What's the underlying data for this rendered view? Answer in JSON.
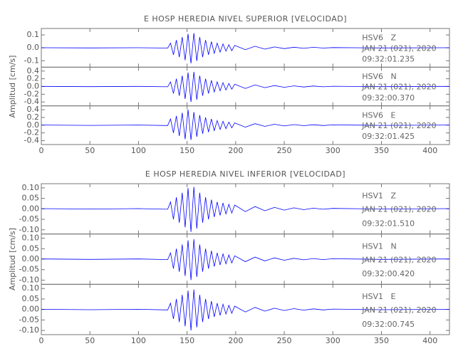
{
  "chart_data": [
    {
      "type": "line",
      "title": "E HOSP HEREDIA NIVEL SUPERIOR [VELOCIDAD]",
      "y_label": "Amplitud [cm/s]",
      "xlim": [
        0,
        420
      ],
      "xticks": [
        0,
        50,
        100,
        150,
        200,
        250,
        300,
        350,
        400
      ],
      "x": [
        0,
        50,
        100,
        130,
        133,
        136,
        139,
        142,
        145,
        148,
        151,
        154,
        157,
        160,
        163,
        166,
        169,
        172,
        175,
        178,
        181,
        184,
        187,
        190,
        193,
        196,
        199,
        210,
        220,
        230,
        240,
        250,
        260,
        270,
        280,
        290,
        300,
        350,
        420
      ],
      "series": [
        {
          "name": "HSV6   Z",
          "date": "JAN 21 (021), 2020",
          "time": "09:32:01.235",
          "color": "#0000ff",
          "ylim": [
            -0.15,
            0.15
          ],
          "yticks": [
            {
              "value": 0.1,
              "label": "0.1"
            },
            {
              "value": 0,
              "label": "0.0"
            },
            {
              "value": -0.1,
              "label": "-0.1"
            }
          ],
          "values": [
            0.001,
            -0.001,
            0.001,
            -0.002,
            0.036,
            -0.054,
            0.06,
            -0.072,
            0.084,
            -0.096,
            0.108,
            -0.12,
            0.114,
            -0.102,
            0.084,
            -0.072,
            0.06,
            -0.054,
            0.048,
            -0.042,
            0.036,
            -0.034,
            0.03,
            -0.026,
            0.024,
            -0.022,
            0.019,
            -0.014,
            0.012,
            -0.01,
            0.007,
            -0.006,
            0.005,
            -0.004,
            0.004,
            -0.002,
            0.002,
            -0.001,
            0.001
          ]
        },
        {
          "name": "HSV6   N",
          "date": "JAN 21 (021), 2020",
          "time": "09:32:00.370",
          "color": "#0000ff",
          "ylim": [
            -0.5,
            0.5
          ],
          "yticks": [
            0.4,
            0.2,
            {
              "value": 0,
              "label": "0.0"
            },
            -0.2,
            -0.4
          ],
          "values": [
            0.004,
            -0.004,
            0.004,
            -0.008,
            0.12,
            -0.18,
            0.2,
            -0.24,
            0.28,
            -0.32,
            0.36,
            -0.4,
            0.38,
            -0.34,
            0.28,
            -0.24,
            0.2,
            -0.18,
            0.16,
            -0.14,
            0.12,
            -0.11,
            0.1,
            -0.09,
            0.08,
            -0.07,
            0.06,
            -0.05,
            0.04,
            -0.03,
            0.024,
            -0.02,
            0.016,
            -0.012,
            0.012,
            -0.008,
            0.008,
            -0.004,
            0.004
          ]
        },
        {
          "name": "HSV6   E",
          "date": "JAN 21 (021), 2020",
          "time": "09:32:01.425",
          "color": "#0000ff",
          "ylim": [
            -0.5,
            0.5
          ],
          "yticks": [
            0.4,
            0.2,
            {
              "value": 0,
              "label": "0.0"
            },
            -0.2,
            -0.4
          ],
          "values": [
            0.004,
            -0.004,
            0.004,
            -0.008,
            0.16,
            -0.2,
            0.24,
            -0.28,
            0.32,
            -0.36,
            0.4,
            -0.38,
            0.34,
            -0.3,
            0.26,
            -0.22,
            0.2,
            -0.18,
            0.16,
            -0.14,
            0.12,
            -0.11,
            0.1,
            -0.09,
            0.08,
            -0.07,
            0.06,
            -0.05,
            0.04,
            -0.03,
            0.024,
            -0.02,
            0.016,
            -0.012,
            0.012,
            -0.008,
            0.008,
            -0.004,
            0.004
          ]
        }
      ]
    },
    {
      "type": "line",
      "title": "E HOSP HEREDIA NIVEL INFERIOR [VELOCIDAD]",
      "y_label": "Amplitud [cm/s]",
      "xlim": [
        0,
        420
      ],
      "xticks": [
        0,
        50,
        100,
        150,
        200,
        250,
        300,
        350,
        400
      ],
      "x": [
        0,
        50,
        100,
        130,
        133,
        136,
        139,
        142,
        145,
        148,
        151,
        154,
        157,
        160,
        163,
        166,
        169,
        172,
        175,
        178,
        181,
        184,
        187,
        190,
        193,
        196,
        199,
        210,
        220,
        230,
        240,
        250,
        260,
        270,
        280,
        290,
        300,
        350,
        420
      ],
      "series": [
        {
          "name": "HSV1   Z",
          "date": "JAN 21 (021), 2020",
          "time": "09:32:01.510",
          "color": "#0000ff",
          "ylim": [
            -0.12,
            0.12
          ],
          "yticks": [
            {
              "value": 0.1,
              "label": "0.10"
            },
            0.05,
            {
              "value": 0,
              "label": "0.00"
            },
            -0.05,
            {
              "value": -0.1,
              "label": "-0.10"
            }
          ],
          "values": [
            0.001,
            -0.001,
            0.001,
            -0.002,
            0.033,
            -0.05,
            0.055,
            -0.066,
            0.077,
            -0.088,
            0.099,
            -0.11,
            0.105,
            -0.094,
            0.077,
            -0.066,
            0.055,
            -0.05,
            0.044,
            -0.039,
            0.033,
            -0.031,
            0.028,
            -0.024,
            0.022,
            -0.02,
            0.018,
            -0.013,
            0.011,
            -0.009,
            0.007,
            -0.006,
            0.005,
            -0.004,
            0.003,
            -0.002,
            0.002,
            -0.001,
            0.001
          ]
        },
        {
          "name": "HSV1   N",
          "date": "JAN 21 (021), 2020",
          "time": "09:32:00.420",
          "color": "#0000ff",
          "ylim": [
            -0.12,
            0.12
          ],
          "yticks": [
            {
              "value": 0.1,
              "label": "0.10"
            },
            0.05,
            {
              "value": 0,
              "label": "0.00"
            },
            -0.05,
            {
              "value": -0.1,
              "label": "-0.10"
            }
          ],
          "values": [
            0.001,
            -0.001,
            0.001,
            -0.002,
            0.03,
            -0.045,
            0.05,
            -0.06,
            0.07,
            -0.08,
            0.09,
            -0.1,
            0.095,
            -0.085,
            0.07,
            -0.06,
            0.05,
            -0.045,
            0.04,
            -0.035,
            0.03,
            -0.028,
            0.025,
            -0.022,
            0.02,
            -0.018,
            0.016,
            -0.012,
            0.01,
            -0.008,
            0.006,
            -0.005,
            0.004,
            -0.003,
            0.003,
            -0.002,
            0.002,
            -0.001,
            0.001
          ]
        },
        {
          "name": "HSV1   E",
          "date": "JAN 21 (021), 2020",
          "time": "09:32:00.745",
          "color": "#0000ff",
          "ylim": [
            -0.12,
            0.12
          ],
          "yticks": [
            {
              "value": 0.1,
              "label": "0.10"
            },
            0.05,
            {
              "value": 0,
              "label": "0.00"
            },
            -0.05,
            {
              "value": -0.1,
              "label": "-0.10"
            }
          ],
          "values": [
            0.001,
            -0.001,
            0.001,
            -0.002,
            0.03,
            -0.045,
            0.05,
            -0.06,
            0.07,
            -0.08,
            0.09,
            -0.1,
            0.095,
            -0.085,
            0.07,
            -0.06,
            0.05,
            -0.045,
            0.04,
            -0.035,
            0.03,
            -0.028,
            0.025,
            -0.022,
            0.02,
            -0.018,
            0.016,
            -0.012,
            0.01,
            -0.008,
            0.006,
            -0.005,
            0.004,
            -0.003,
            0.003,
            -0.002,
            0.002,
            -0.001,
            0.001
          ]
        }
      ]
    }
  ]
}
